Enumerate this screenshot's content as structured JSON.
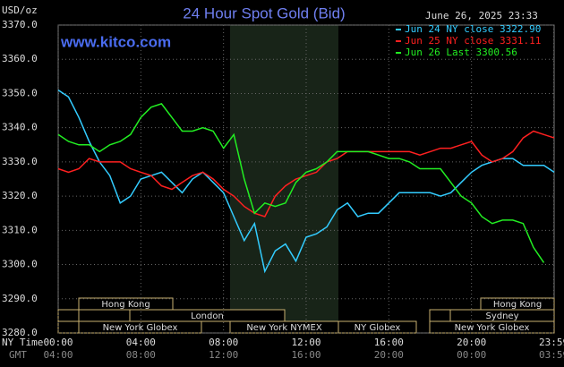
{
  "chart_data": {
    "type": "line",
    "title": "24 Hour Spot Gold (Bid)",
    "unit_label": "USD/oz",
    "timestamp": "June 26, 2025 23:33",
    "site": "www.kitco.com",
    "x_axis_label": "NY Time",
    "x2_axis_label": "GMT",
    "x": [
      0,
      0.5,
      1,
      1.5,
      2,
      2.5,
      3,
      3.5,
      4,
      4.5,
      5,
      5.5,
      6,
      6.5,
      7,
      7.5,
      8,
      8.5,
      9,
      9.5,
      10,
      10.5,
      11,
      11.5,
      12,
      12.5,
      13,
      13.5,
      14,
      14.5,
      15,
      15.5,
      16,
      16.5,
      17,
      17.5,
      18,
      18.5,
      19,
      19.5,
      20,
      20.5,
      21,
      21.5,
      22,
      22.5,
      23,
      23.5,
      24
    ],
    "xlim": [
      0,
      24
    ],
    "xticks": [
      {
        "value": 0,
        "label": "00:00"
      },
      {
        "value": 4,
        "label": "04:00"
      },
      {
        "value": 8,
        "label": "08:00"
      },
      {
        "value": 12,
        "label": "12:00"
      },
      {
        "value": 16,
        "label": "16:00"
      },
      {
        "value": 20,
        "label": "20:00"
      },
      {
        "value": 23.98,
        "label": "23:59"
      }
    ],
    "x2ticks": [
      "04:00",
      "08:00",
      "12:00",
      "16:00",
      "20:00",
      "00:00",
      "03:59"
    ],
    "ylim": [
      3280,
      3370
    ],
    "yticks": [
      {
        "value": 3280,
        "label": "3280.0"
      },
      {
        "value": 3290,
        "label": "3290.0"
      },
      {
        "value": 3300,
        "label": "3300.0"
      },
      {
        "value": 3310,
        "label": "3310.0"
      },
      {
        "value": 3320,
        "label": "3320.0"
      },
      {
        "value": 3330,
        "label": "3330.0"
      },
      {
        "value": 3340,
        "label": "3340.0"
      },
      {
        "value": 3350,
        "label": "3350.0"
      },
      {
        "value": 3360,
        "label": "3360.0"
      },
      {
        "value": 3370,
        "label": "3370.0"
      }
    ],
    "grid": true,
    "sessions": [
      "Hong Kong",
      "London",
      "New York Globex",
      "New York NYMEX",
      "NY Globex",
      "Hong Kong",
      "Sydney",
      "New York Globex"
    ],
    "series": [
      {
        "name": "Jun 24 NY close 3322.90",
        "color": "#33ccff",
        "values": [
          3351,
          3349,
          3343,
          3336,
          3330,
          3326,
          3318,
          3320,
          3325,
          3326,
          3327,
          3324,
          3321,
          3325,
          3327,
          3324,
          3321,
          3314,
          3307,
          3312,
          3298,
          3304,
          3306,
          3301,
          3308,
          3309,
          3311,
          3316,
          3318,
          3314,
          3315,
          3315,
          3318,
          3321,
          3321,
          3321,
          3321,
          3320,
          3321,
          3324,
          3327,
          3329,
          3330,
          3331,
          3331,
          3329,
          3329,
          3329,
          3327
        ]
      },
      {
        "name": "Jun 25 NY close 3331.11",
        "color": "#ff2020",
        "values": [
          3328,
          3327,
          3328,
          3331,
          3330,
          3330,
          3330,
          3328,
          3327,
          3326,
          3323,
          3322,
          3324,
          3326,
          3327,
          3325,
          3322,
          3320,
          3317,
          3315,
          3314,
          3320,
          3323,
          3325,
          3326,
          3327,
          3330,
          3331,
          3333,
          3333,
          3333,
          3333,
          3333,
          3333,
          3333,
          3332,
          3333,
          3334,
          3334,
          3335,
          3336,
          3332,
          3330,
          3331,
          3333,
          3337,
          3339,
          3338,
          3337
        ]
      },
      {
        "name": "Jun 26 Last 3300.56",
        "color": "#22ee22",
        "values": [
          3338,
          3336,
          3335,
          3335,
          3333,
          3335,
          3336,
          3338,
          3343,
          3346,
          3347,
          3343,
          3339,
          3339,
          3340,
          3339,
          3334,
          3338,
          3325,
          3315,
          3318,
          3317,
          3318,
          3324,
          3327,
          3328,
          3330,
          3333,
          3333,
          3333,
          3333,
          3332,
          3331,
          3331,
          3330,
          3328,
          3328,
          3328,
          3324,
          3320,
          3318,
          3314,
          3312,
          3313,
          3313,
          3312,
          3305,
          3300.56,
          null
        ]
      }
    ]
  }
}
